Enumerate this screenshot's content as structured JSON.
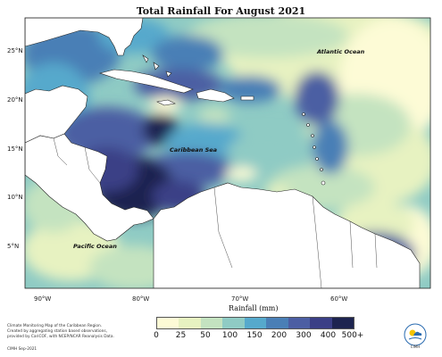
{
  "title": "Total Rainfall For August 2021",
  "map": {
    "place_labels": [
      {
        "text": "Atlantic Ocean",
        "key": "atlantic"
      },
      {
        "text": "Caribbean Sea",
        "key": "caribbean"
      },
      {
        "text": "Pacific Ocean",
        "key": "pacific"
      }
    ],
    "lat_labels": [
      "25°N",
      "20°N",
      "15°N",
      "10°N",
      "5°N"
    ],
    "lon_labels": [
      "90°W",
      "80°W",
      "70°W",
      "60°W"
    ]
  },
  "legend": {
    "title": "Rainfall (mm)",
    "ticks": [
      "0",
      "25",
      "50",
      "100",
      "150",
      "200",
      "300",
      "400",
      "500+"
    ],
    "colors": [
      "#fdfbd6",
      "#e7f2c1",
      "#c4e3c0",
      "#8fcbc4",
      "#56a9cc",
      "#4a7fb6",
      "#4c5ea3",
      "#3b3f86",
      "#1d2450"
    ]
  },
  "credit": {
    "line1": "Climate Monitoring Map of the Caribbean Region.",
    "line2": "Created by aggregating station based observations,",
    "line3": "provided by CariCOF, with NCEP/NCAR Reanalysis Data.",
    "line4": "CIMH Sep-2021"
  },
  "logo": {
    "text": "CIMH"
  }
}
